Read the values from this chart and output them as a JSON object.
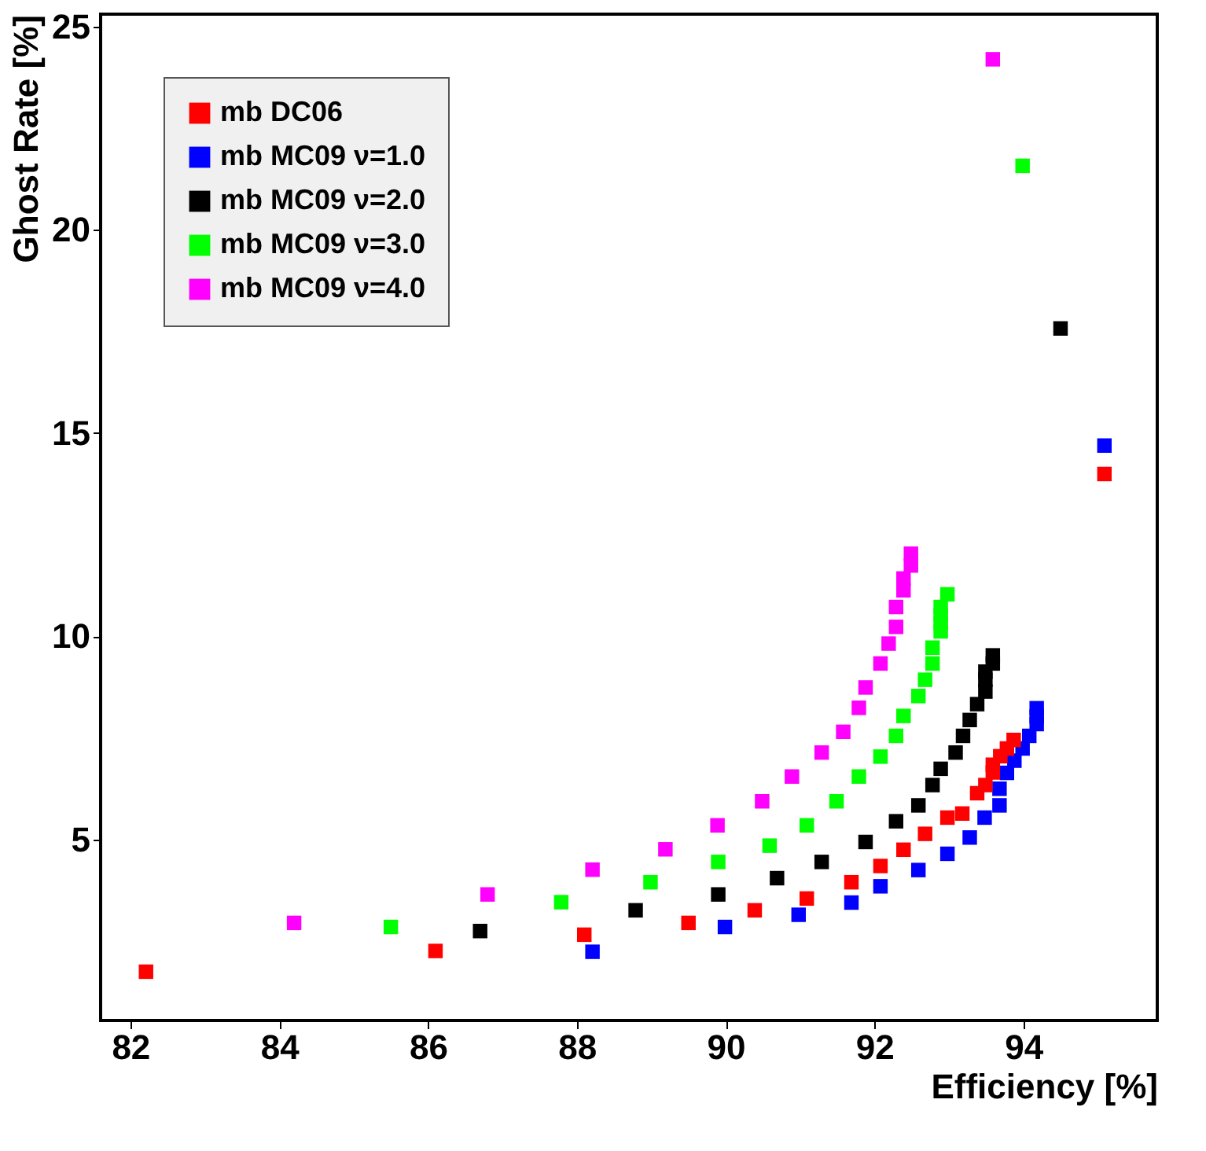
{
  "chart_data": {
    "type": "scatter",
    "xlabel": "Efficiency [%]",
    "ylabel": "Ghost Rate [%]",
    "xlim": [
      81.6,
      95.8
    ],
    "xticks": [
      82,
      84,
      86,
      88,
      90,
      92,
      94
    ],
    "ylim": [
      0.55,
      25.3
    ],
    "yticks": [
      5,
      10,
      15,
      20,
      25
    ],
    "grid": false,
    "legend": "top left",
    "marker": "square",
    "series": [
      {
        "name": "mb DC06",
        "color": "#ff0000",
        "x": [
          82.21,
          86.1,
          88.1,
          89.5,
          90.39,
          91.09,
          91.69,
          92.08,
          92.39,
          92.68,
          92.98,
          93.18,
          93.38,
          93.49,
          93.59,
          93.59,
          93.69,
          93.78,
          93.87,
          95.09
        ],
        "values": [
          1.75,
          2.26,
          2.66,
          2.95,
          3.26,
          3.55,
          3.95,
          4.35,
          4.75,
          5.14,
          5.54,
          5.64,
          6.14,
          6.34,
          6.65,
          6.84,
          7.05,
          7.24,
          7.45,
          13.99
        ]
      },
      {
        "name": "mb MC09 ν=1.0",
        "color": "#0000ff",
        "x": [
          88.21,
          89.99,
          90.98,
          91.69,
          92.08,
          92.59,
          92.98,
          93.28,
          93.48,
          93.68,
          93.68,
          93.78,
          93.88,
          93.99,
          94.08,
          94.18,
          94.18,
          94.18,
          95.09
        ],
        "values": [
          2.24,
          2.85,
          3.15,
          3.45,
          3.85,
          4.25,
          4.65,
          5.05,
          5.54,
          5.84,
          6.25,
          6.64,
          6.94,
          7.24,
          7.55,
          7.84,
          8.03,
          8.23,
          14.69
        ]
      },
      {
        "name": "mb MC09 ν=2.0",
        "color": "#000000",
        "x": [
          86.7,
          88.79,
          89.9,
          90.69,
          91.29,
          91.88,
          92.29,
          92.59,
          92.78,
          92.89,
          93.09,
          93.19,
          93.28,
          93.38,
          93.49,
          93.49,
          93.49,
          93.59,
          93.59,
          94.5
        ],
        "values": [
          2.75,
          3.26,
          3.65,
          4.05,
          4.45,
          4.94,
          5.45,
          5.84,
          6.34,
          6.74,
          7.14,
          7.55,
          7.94,
          8.33,
          8.64,
          8.93,
          9.13,
          9.33,
          9.53,
          17.57
        ]
      },
      {
        "name": "mb MC09 ν=3.0",
        "color": "#00ff00",
        "x": [
          85.5,
          87.79,
          88.99,
          89.9,
          90.59,
          91.09,
          91.49,
          91.79,
          92.08,
          92.29,
          92.39,
          92.59,
          92.68,
          92.78,
          92.78,
          92.89,
          92.89,
          92.89,
          92.89,
          92.98,
          93.99
        ],
        "values": [
          2.85,
          3.46,
          3.95,
          4.45,
          4.85,
          5.35,
          5.94,
          6.55,
          7.04,
          7.55,
          8.04,
          8.53,
          8.93,
          9.33,
          9.72,
          10.12,
          10.32,
          10.53,
          10.72,
          11.03,
          21.57
        ]
      },
      {
        "name": "mb MC09 ν=4.0",
        "color": "#ff00ff",
        "x": [
          84.2,
          86.8,
          88.21,
          89.19,
          89.89,
          90.49,
          90.89,
          91.29,
          91.58,
          91.79,
          91.88,
          92.08,
          92.19,
          92.29,
          92.29,
          92.39,
          92.39,
          92.49,
          92.49,
          93.59
        ],
        "values": [
          2.95,
          3.65,
          4.26,
          4.76,
          5.35,
          5.94,
          6.55,
          7.14,
          7.65,
          8.24,
          8.74,
          9.33,
          9.82,
          10.23,
          10.72,
          11.13,
          11.42,
          11.74,
          12.03,
          24.19
        ]
      }
    ]
  }
}
